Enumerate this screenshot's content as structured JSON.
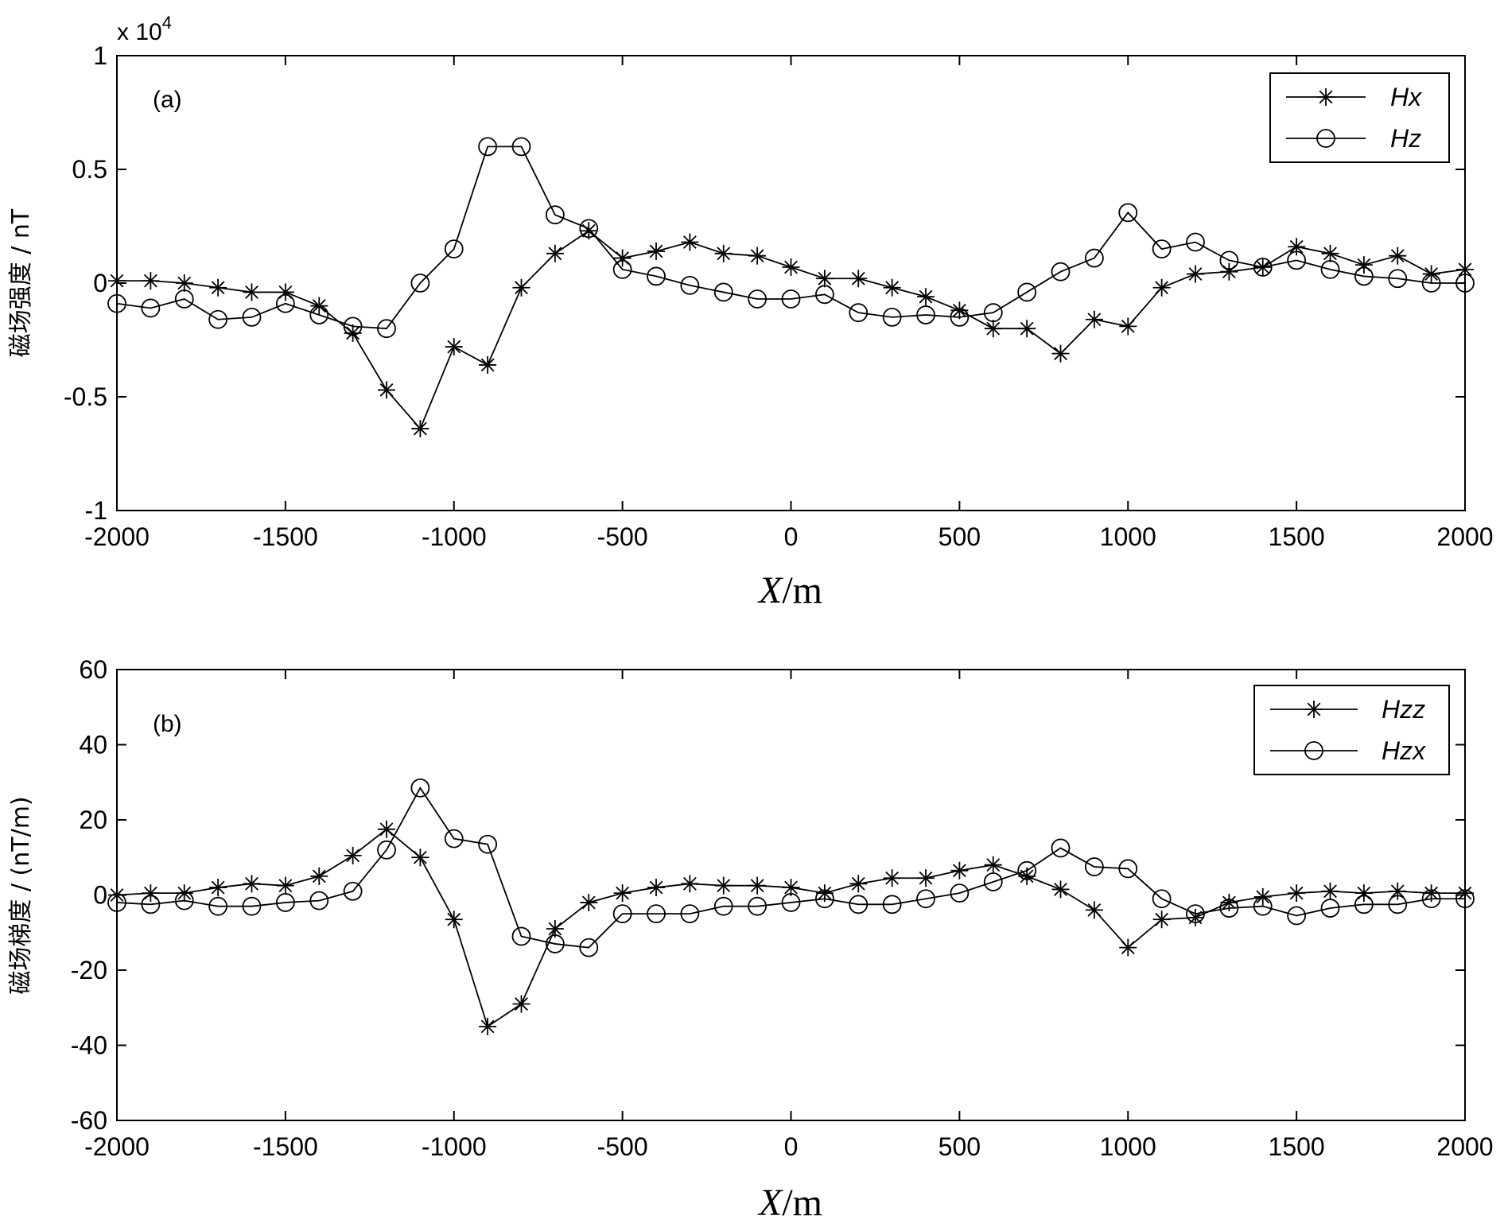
{
  "chart_data": [
    {
      "type": "line",
      "panel_label": "(a)",
      "multiplier": "x 10",
      "multiplier_exp": "4",
      "xlabel_var": "X",
      "xlabel_unit": "/m",
      "ylabel": "磁场强度 / nT",
      "xlim": [
        -2000,
        2000
      ],
      "ylim": [
        -1,
        1
      ],
      "xticks": [
        "-2000",
        "-1500",
        "-1000",
        "-500",
        "0",
        "500",
        "1000",
        "1500",
        "2000"
      ],
      "yticks": [
        "-1",
        "-0.5",
        "0",
        "0.5",
        "1"
      ],
      "yticks_values": [
        -1,
        -0.5,
        0,
        0.5,
        1
      ],
      "legend_position": "top-right",
      "x": [
        -2000,
        -1900,
        -1800,
        -1700,
        -1600,
        -1500,
        -1400,
        -1300,
        -1200,
        -1100,
        -1000,
        -900,
        -800,
        -700,
        -600,
        -500,
        -400,
        -300,
        -200,
        -100,
        0,
        100,
        200,
        300,
        400,
        500,
        600,
        700,
        800,
        900,
        1000,
        1100,
        1200,
        1300,
        1400,
        1500,
        1600,
        1700,
        1800,
        1900,
        2000
      ],
      "series": [
        {
          "name": "Hx",
          "marker": "star",
          "values": [
            0.01,
            0.01,
            0.0,
            -0.02,
            -0.04,
            -0.04,
            -0.1,
            -0.22,
            -0.47,
            -0.64,
            -0.28,
            -0.36,
            -0.02,
            0.13,
            0.23,
            0.11,
            0.14,
            0.18,
            0.13,
            0.12,
            0.07,
            0.02,
            0.02,
            -0.02,
            -0.06,
            -0.12,
            -0.2,
            -0.2,
            -0.31,
            -0.16,
            -0.19,
            -0.02,
            0.04,
            0.05,
            0.07,
            0.16,
            0.13,
            0.08,
            0.12,
            0.04,
            0.06
          ]
        },
        {
          "name": "Hz",
          "marker": "circle",
          "values": [
            -0.09,
            -0.11,
            -0.07,
            -0.16,
            -0.15,
            -0.09,
            -0.14,
            -0.19,
            -0.2,
            0.0,
            0.15,
            0.6,
            0.6,
            0.3,
            0.24,
            0.06,
            0.03,
            -0.01,
            -0.04,
            -0.07,
            -0.07,
            -0.05,
            -0.13,
            -0.15,
            -0.14,
            -0.15,
            -0.13,
            -0.04,
            0.05,
            0.11,
            0.31,
            0.15,
            0.18,
            0.1,
            0.07,
            0.1,
            0.06,
            0.03,
            0.02,
            0.0,
            0.0
          ]
        }
      ]
    },
    {
      "type": "line",
      "panel_label": "(b)",
      "xlabel_var": "X",
      "xlabel_unit": "/m",
      "ylabel": "磁场梯度 / (nT/m)",
      "xlim": [
        -2000,
        2000
      ],
      "ylim": [
        -60,
        60
      ],
      "xticks": [
        "-2000",
        "-1500",
        "-1000",
        "-500",
        "0",
        "500",
        "1000",
        "1500",
        "2000"
      ],
      "yticks": [
        "-60",
        "-40",
        "-20",
        "0",
        "20",
        "40",
        "60"
      ],
      "yticks_values": [
        -60,
        -40,
        -20,
        0,
        20,
        40,
        60
      ],
      "legend_position": "top-right",
      "x": [
        -2000,
        -1900,
        -1800,
        -1700,
        -1600,
        -1500,
        -1400,
        -1300,
        -1200,
        -1100,
        -1000,
        -900,
        -800,
        -700,
        -600,
        -500,
        -400,
        -300,
        -200,
        -100,
        0,
        100,
        200,
        300,
        400,
        500,
        600,
        700,
        800,
        900,
        1000,
        1100,
        1200,
        1300,
        1400,
        1500,
        1600,
        1700,
        1800,
        1900,
        2000
      ],
      "series": [
        {
          "name": "Hzz",
          "marker": "star",
          "values": [
            0,
            0.5,
            0.5,
            2,
            3,
            2.5,
            5,
            10.5,
            17.5,
            10,
            -6.5,
            -35,
            -29,
            -9,
            -2,
            0.5,
            2,
            3,
            2.5,
            2.5,
            2,
            0.5,
            3,
            4.5,
            4.5,
            6.5,
            8,
            5,
            1.5,
            -4,
            -14,
            -6.5,
            -6,
            -2,
            -0.5,
            0.5,
            1,
            0.5,
            1,
            0.5,
            0.5
          ]
        },
        {
          "name": "Hzx",
          "marker": "circle",
          "values": [
            -2,
            -2.5,
            -1.5,
            -3,
            -3,
            -2,
            -1.5,
            1,
            12,
            28.5,
            15,
            13.5,
            -11,
            -13,
            -14,
            -5,
            -5,
            -5,
            -3,
            -3,
            -2,
            -1,
            -2.5,
            -2.5,
            -1,
            0.5,
            3.5,
            6.5,
            12.5,
            7.5,
            7,
            -1,
            -5,
            -3.5,
            -3,
            -5.5,
            -3.5,
            -2.5,
            -2.5,
            -1,
            -1
          ]
        }
      ]
    }
  ]
}
